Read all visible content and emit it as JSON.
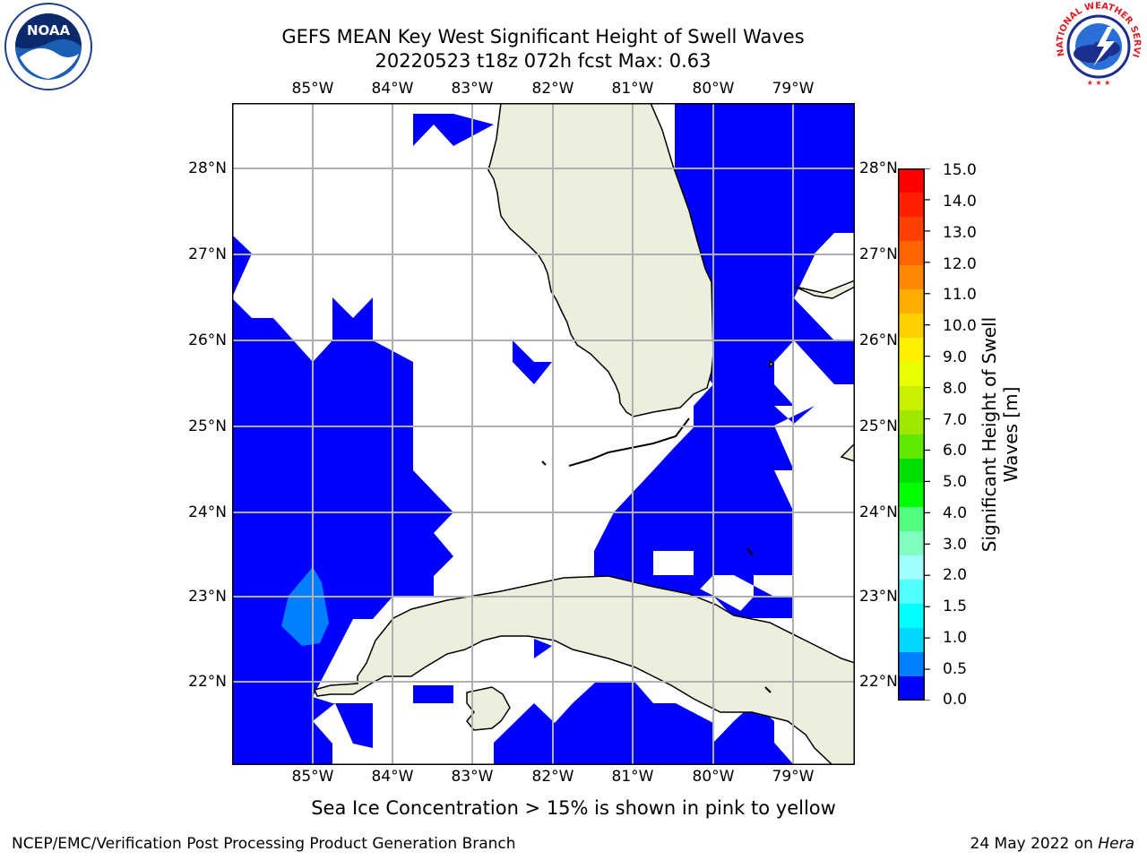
{
  "header": {
    "title": "GEFS MEAN Key West Significant Height of Swell Waves",
    "subtitle": "20220523 t18z 072h fcst   Max: 0.63",
    "left_logo_icon": "noaa-logo",
    "left_logo_text": "NOAA",
    "right_logo_icon": "national-weather-service-logo",
    "right_logo_text": "NATIONAL WEATHER SERVICE"
  },
  "map": {
    "lon_labels": [
      "85°W",
      "84°W",
      "83°W",
      "82°W",
      "81°W",
      "80°W",
      "79°W"
    ],
    "lat_labels": [
      "28°N",
      "27°N",
      "26°N",
      "25°N",
      "24°N",
      "23°N",
      "22°N"
    ],
    "extent": {
      "lon": [
        -86.0,
        -78.25
      ],
      "lat": [
        21.05,
        28.8
      ]
    },
    "grid": true,
    "colors": {
      "land": "#eeeedc",
      "swell_0_0.5": "#0000ff",
      "swell_0.5_1.0": "#0080ff",
      "gridline": "#b0b0b0"
    }
  },
  "colorbar": {
    "ticks": [
      "15.0",
      "14.0",
      "13.0",
      "12.0",
      "11.0",
      "10.0",
      "9.0",
      "8.0",
      "7.0",
      "6.0",
      "5.0",
      "4.0",
      "3.0",
      "2.0",
      "1.5",
      "1.0",
      "0.5",
      "0.0"
    ],
    "colors": [
      "#ff0000",
      "#ff2000",
      "#ff4000",
      "#ff6400",
      "#ff8800",
      "#ffae00",
      "#ffd000",
      "#fff000",
      "#e8ff00",
      "#c8f000",
      "#a0e800",
      "#60e800",
      "#00e000",
      "#00ff00",
      "#50ff80",
      "#80ffc0",
      "#a0ffff",
      "#50ffff",
      "#00ffff",
      "#00d8ff",
      "#0080ff",
      "#0000ff"
    ],
    "label": "Significant Height of Swell Waves [m]"
  },
  "footer": {
    "note": "Sea Ice Concentration > 15% is shown in pink to yellow",
    "credit": "NCEP/EMC/Verification Post Processing Product Generation Branch",
    "date": "24 May 2022 on ",
    "machine": "Hera"
  }
}
